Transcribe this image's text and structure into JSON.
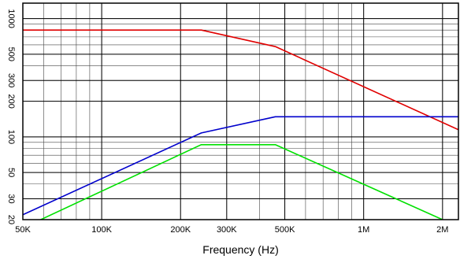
{
  "chart_data": {
    "type": "line",
    "xlabel": "Frequency (Hz)",
    "ylabel": "",
    "x_scale": "log",
    "y_scale": "log",
    "xlim": [
      50000,
      2300000
    ],
    "ylim": [
      20,
      1350
    ],
    "grid": true,
    "x_ticks": [
      {
        "value": 50000,
        "label": "50K"
      },
      {
        "value": 100000,
        "label": "100K"
      },
      {
        "value": 200000,
        "label": "200K"
      },
      {
        "value": 300000,
        "label": "300K"
      },
      {
        "value": 500000,
        "label": "500K"
      },
      {
        "value": 1000000,
        "label": "1M"
      },
      {
        "value": 2000000,
        "label": "2M"
      }
    ],
    "y_ticks": [
      {
        "value": 20,
        "label": "20"
      },
      {
        "value": 30,
        "label": "30"
      },
      {
        "value": 50,
        "label": "50"
      },
      {
        "value": 100,
        "label": "100"
      },
      {
        "value": 200,
        "label": "200"
      },
      {
        "value": 300,
        "label": "300"
      },
      {
        "value": 500,
        "label": "500"
      },
      {
        "value": 1000,
        "label": "1000"
      }
    ],
    "series": [
      {
        "color": "#e00000",
        "x": [
          50000,
          240000,
          460000,
          2300000
        ],
        "y": [
          800,
          800,
          580,
          115
        ]
      },
      {
        "color": "#0000cc",
        "x": [
          50000,
          240000,
          460000,
          2300000
        ],
        "y": [
          22,
          108,
          148,
          148
        ]
      },
      {
        "color": "#00e000",
        "x": [
          50000,
          240000,
          460000,
          2000000
        ],
        "y": [
          17,
          86,
          86,
          20
        ]
      }
    ]
  }
}
